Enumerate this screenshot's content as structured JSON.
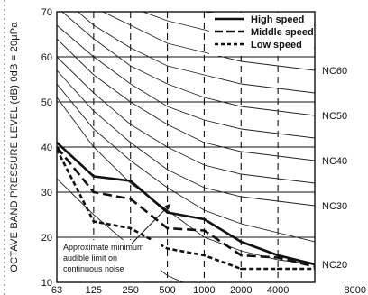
{
  "chart_data": {
    "type": "line",
    "ylabel": "OCTAVE  BAND  PRESSURE  LEVEL (dB) 0dB = 20μPa",
    "ylim": [
      10,
      70
    ],
    "yticks": [
      "10",
      "20",
      "30",
      "40",
      "50",
      "60",
      "70"
    ],
    "categories": [
      "63",
      "125",
      "250",
      "500",
      "1000",
      "2000",
      "4000",
      "8000"
    ],
    "grid": "horizontal solid, vertical dashed",
    "legend_position": "top-right",
    "series": [
      {
        "name": "High speed",
        "style": "solid",
        "values": [
          41,
          33.5,
          32.5,
          25.5,
          24,
          19,
          16,
          14
        ]
      },
      {
        "name": "Middle speed",
        "style": "long-dash",
        "values": [
          40,
          30,
          28.5,
          22,
          21.5,
          16,
          15.5,
          13.5
        ]
      },
      {
        "name": "Low speed",
        "style": "short-dash",
        "values": [
          39.5,
          23.5,
          22,
          17.5,
          16,
          13,
          13,
          13
        ]
      }
    ],
    "nc_curves": [
      {
        "label": "",
        "values": [
          33,
          25,
          18,
          11.5,
          8,
          6,
          5,
          4.5
        ]
      },
      {
        "label": "NC20",
        "values": [
          51,
          40,
          32,
          26,
          20,
          17,
          15,
          14
        ]
      },
      {
        "label": "",
        "values": [
          54,
          44,
          37,
          31,
          26,
          23,
          21,
          19
        ]
      },
      {
        "label": "NC30",
        "values": [
          57,
          48,
          41,
          35,
          31,
          29,
          28,
          27
        ]
      },
      {
        "label": "",
        "values": [
          60,
          52,
          45,
          40,
          36,
          34,
          33,
          32
        ]
      },
      {
        "label": "NC40",
        "values": [
          64,
          56,
          50,
          45,
          41,
          39,
          38,
          37
        ]
      },
      {
        "label": "",
        "values": [
          67,
          60,
          54,
          49,
          46,
          44,
          43,
          42
        ]
      },
      {
        "label": "NC50",
        "values": [
          71,
          64,
          58,
          54,
          51,
          49,
          48,
          47
        ]
      },
      {
        "label": "",
        "values": [
          74,
          67,
          62,
          58,
          56,
          54,
          53,
          52
        ]
      },
      {
        "label": "NC60",
        "values": [
          77,
          71,
          67,
          63,
          61,
          59,
          58,
          57
        ]
      },
      {
        "label": "",
        "values": [
          80,
          75,
          71,
          68,
          66,
          64,
          63,
          62
        ]
      },
      {
        "label": "",
        "values": [
          83,
          79,
          75,
          72,
          70,
          69,
          68,
          67
        ]
      }
    ],
    "annotation": {
      "lines": [
        "Approximate minimum",
        "audible limit on",
        "continuous noise"
      ]
    }
  }
}
